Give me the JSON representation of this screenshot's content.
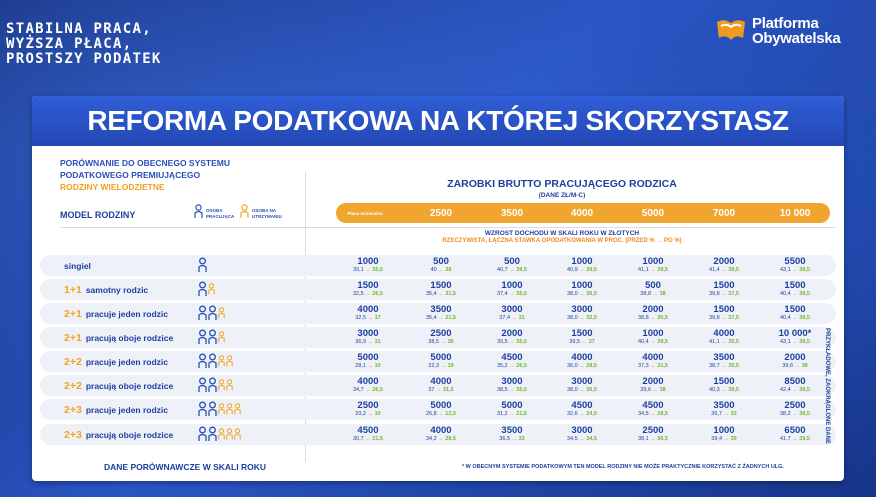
{
  "header": {
    "slogan_lines": [
      "STABILNA PRACA,",
      "WYŻSZA PŁACA,",
      "PROSTSZY PODATEK"
    ],
    "logo_text_1": "Platforma",
    "logo_text_2": "Obywatelska"
  },
  "panel": {
    "title": "REFORMA PODATKOWA NA KTÓREJ SKORZYSTASZ",
    "intro_line1": "PORÓWNANIE DO OBECNEGO SYSTEMU",
    "intro_line2": "PODATKOWEGO PREMIUJĄCEGO",
    "intro_line3": "RODZINY WIELODZIETNE",
    "model_label": "MODEL RODZINY",
    "legend_working": "OSOBA PRACUJĄCA",
    "legend_dependent": "OSOBA NA UTRZYMANIU",
    "salary_title": "ZAROBKI BRUTTO PRACUJĄCEGO RODZICA",
    "salary_sub": "(DANE ZŁ/M-C)",
    "salary_cols": [
      "Płaca minimalna",
      "2500",
      "3500",
      "4000",
      "5000",
      "7000",
      "10 000"
    ],
    "income_title": "WZROST DOCHODU W SKALI ROKU W ZŁOTYCH",
    "income_sub": "RZECZYWISTA, ŁĄCZNA STAWKA OPODATKOWANIA W PROC. (PRZED % → PO %)",
    "side_note": "PRZYKŁADOWE, ZAOKRĄGLONE DANE",
    "footer_left": "DANE PORÓWNAWCZE W SKALI ROKU",
    "footer_right": "* W OBECNYM SYSTEMIE PODATKOWYM TEN MODEL RODZINY NIE MOŻE PRAKTYCZNIE KORZYSTAĆ Z ŻADNYCH ULG."
  },
  "rows": [
    {
      "fam": "",
      "label": "singiel",
      "workers": 1,
      "kids": 0,
      "cells": [
        [
          "1000",
          "39,1",
          "35,5"
        ],
        [
          "500",
          "40",
          "38"
        ],
        [
          "500",
          "40,7",
          "39,5"
        ],
        [
          "1000",
          "40,9",
          "39,5"
        ],
        [
          "1000",
          "41,1",
          "39,5"
        ],
        [
          "2000",
          "41,4",
          "39,5"
        ],
        [
          "5500",
          "43,1",
          "39,5"
        ]
      ]
    },
    {
      "fam": "1+1",
      "label": "samotny rodzic",
      "workers": 1,
      "kids": 1,
      "cells": [
        [
          "1500",
          "32,5",
          "26,5"
        ],
        [
          "1500",
          "35,4",
          "31,5"
        ],
        [
          "1000",
          "37,4",
          "35,5"
        ],
        [
          "1000",
          "38,0",
          "36,5"
        ],
        [
          "500",
          "38,8",
          "38"
        ],
        [
          "1500",
          "39,8",
          "37,5"
        ],
        [
          "1500",
          "40,4",
          "39,5"
        ]
      ]
    },
    {
      "fam": "2+1",
      "label": "pracuje jeden rodzic",
      "workers": 2,
      "kids": 1,
      "cells": [
        [
          "4000",
          "32,5",
          "17"
        ],
        [
          "3500",
          "35,4",
          "21,5"
        ],
        [
          "3000",
          "37,4",
          "31"
        ],
        [
          "3000",
          "38,0",
          "32,5"
        ],
        [
          "2000",
          "38,8",
          "35,5"
        ],
        [
          "1500",
          "39,8",
          "37,5"
        ],
        [
          "1500",
          "40,4",
          "39,5"
        ]
      ]
    },
    {
      "fam": "2+1",
      "label": "pracują oboje rodzice",
      "workers": 2,
      "kids": 1,
      "cells": [
        [
          "3000",
          "36,9",
          "31"
        ],
        [
          "2500",
          "38,5",
          "35"
        ],
        [
          "2000",
          "39,5",
          "35,5"
        ],
        [
          "1500",
          "39,5",
          "37"
        ],
        [
          "1000",
          "40,4",
          "39,5"
        ],
        [
          "4000",
          "41,1",
          "35,5"
        ],
        [
          "10 000*",
          "43,1",
          "39,5"
        ]
      ]
    },
    {
      "fam": "2+2",
      "label": "pracuje jeden rodzic",
      "workers": 2,
      "kids": 2,
      "cells": [
        [
          "5000",
          "28,1",
          "10"
        ],
        [
          "5000",
          "32,3",
          "19"
        ],
        [
          "4500",
          "35,2",
          "26,5"
        ],
        [
          "4000",
          "36,0",
          "28,5"
        ],
        [
          "4000",
          "37,3",
          "31,5"
        ],
        [
          "3500",
          "38,7",
          "35,5"
        ],
        [
          "2000",
          "39,6",
          "38"
        ]
      ]
    },
    {
      "fam": "2+2",
      "label": "pracują oboje rodzice",
      "workers": 2,
      "kids": 2,
      "cells": [
        [
          "4000",
          "34,7",
          "26,5"
        ],
        [
          "4000",
          "37",
          "31,5"
        ],
        [
          "3000",
          "38,5",
          "35,5"
        ],
        [
          "3000",
          "38,0",
          "36,5"
        ],
        [
          "2000",
          "39,6",
          "38"
        ],
        [
          "1500",
          "40,3",
          "39,5"
        ],
        [
          "8500",
          "42,4",
          "39,5"
        ]
      ]
    },
    {
      "fam": "2+3",
      "label": "pracuje jeden rodzic",
      "workers": 2,
      "kids": 3,
      "cells": [
        [
          "2500",
          "20,2",
          "10"
        ],
        [
          "5000",
          "26,8",
          "12,5"
        ],
        [
          "5000",
          "31,2",
          "21,5"
        ],
        [
          "4500",
          "32,6",
          "24,5"
        ],
        [
          "4500",
          "34,5",
          "28,5"
        ],
        [
          "3500",
          "36,7",
          "33"
        ],
        [
          "2500",
          "38,2",
          "36,5"
        ]
      ]
    },
    {
      "fam": "2+3",
      "label": "pracują oboje rodzice",
      "workers": 2,
      "kids": 3,
      "cells": [
        [
          "4500",
          "30,7",
          "21,5"
        ],
        [
          "4000",
          "34,2",
          "28,5"
        ],
        [
          "3500",
          "36,5",
          "33"
        ],
        [
          "3000",
          "34,5",
          "34,5"
        ],
        [
          "2500",
          "38,1",
          "36,5"
        ],
        [
          "1000",
          "39,4",
          "39"
        ],
        [
          "6500",
          "41,7",
          "39,5"
        ]
      ]
    }
  ],
  "colors": {
    "navy": "#1f3f9f",
    "orange": "#f0a52e",
    "green": "#6fb632"
  }
}
